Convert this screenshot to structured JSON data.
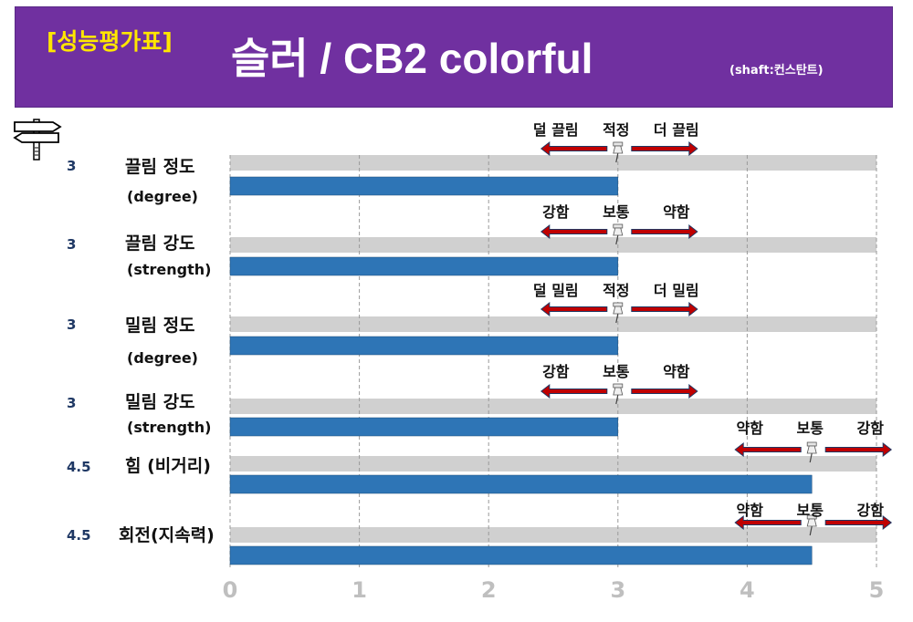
{
  "header": {
    "badge": "[성능평가표]",
    "title": "슬러 / CB2 colorful",
    "subtitle": "(shaft:컨스탄트)"
  },
  "colors": {
    "banner": "#7030a0",
    "badge_text": "#ffe600",
    "bar": "#2e75b6",
    "track": "#d0d0d0",
    "arrow": "#c00000",
    "score_text": "#1f3864"
  },
  "icons": [
    "signpost-icon",
    "pin-icon"
  ],
  "chart_data": {
    "type": "bar",
    "orientation": "horizontal",
    "xlim": [
      0,
      5
    ],
    "xticks": [
      "0",
      "1",
      "2",
      "3",
      "4",
      "5"
    ],
    "grid": true,
    "categories": [
      {
        "label": "끌림 정도",
        "sublabel": "(degree)",
        "value": 3,
        "value_label": "3",
        "scale": {
          "left": "덜 끌림",
          "mid": "적정",
          "right": "더 끌림"
        },
        "marker": 3
      },
      {
        "label": "끌림 강도",
        "sublabel": "(strength)",
        "value": 3,
        "value_label": "3",
        "scale": {
          "left": "강함",
          "mid": "보통",
          "right": "약함"
        },
        "marker": 3
      },
      {
        "label": "밀림 정도",
        "sublabel": "(degree)",
        "value": 3,
        "value_label": "3",
        "scale": {
          "left": "덜 밀림",
          "mid": "적정",
          "right": "더 밀림"
        },
        "marker": 3
      },
      {
        "label": "밀림 강도",
        "sublabel": "(strength)",
        "value": 3,
        "value_label": "3",
        "scale": {
          "left": "강함",
          "mid": "보통",
          "right": "약함"
        },
        "marker": 3
      },
      {
        "label": "힘 (비거리)",
        "sublabel": "",
        "value": 4.5,
        "value_label": "4.5",
        "scale": {
          "left": "약함",
          "mid": "보통",
          "right": "강함"
        },
        "marker": 4.5
      },
      {
        "label": "회전(지속력)",
        "sublabel": "",
        "value": 4.5,
        "value_label": "4.5",
        "scale": {
          "left": "약함",
          "mid": "보통",
          "right": "강함"
        },
        "marker": 4.5
      }
    ]
  }
}
